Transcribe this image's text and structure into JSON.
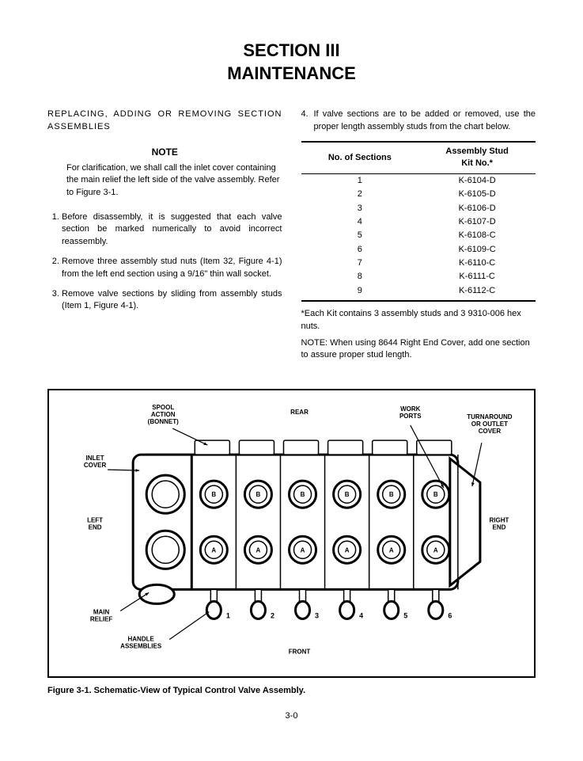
{
  "header": {
    "section_label": "SECTION III",
    "title": "MAINTENANCE"
  },
  "left_col": {
    "heading": "REPLACING, ADDING OR REMOVING SECTION ASSEMBLIES",
    "note_label": "NOTE",
    "note_body": "For clarification, we shall call the inlet cover containing the main relief the left side of the valve assembly. Refer to Figure 3-1.",
    "steps": [
      "Before disassembly, it is suggested that each valve section be marked numerically to avoid incorrect reassembly.",
      "Remove three assembly stud nuts (Item 32, Figure 4-1) from the left end section using a 9/16\" thin wall socket.",
      "Remove valve sections by sliding from assembly studs (Item 1, Figure 4-1)."
    ]
  },
  "right_col": {
    "step4": "If valve sections are to be added or removed, use the proper length assembly studs from the chart below.",
    "table": {
      "col1": "No. of Sections",
      "col2_line1": "Assembly Stud",
      "col2_line2": "Kit No.*",
      "rows": [
        {
          "n": "1",
          "kit": "K-6104-D"
        },
        {
          "n": "2",
          "kit": "K-6105-D"
        },
        {
          "n": "3",
          "kit": "K-6106-D"
        },
        {
          "n": "4",
          "kit": "K-6107-D"
        },
        {
          "n": "5",
          "kit": "K-6108-C"
        },
        {
          "n": "6",
          "kit": "K-6109-C"
        },
        {
          "n": "7",
          "kit": "K-6110-C"
        },
        {
          "n": "8",
          "kit": "K-6111-C"
        },
        {
          "n": "9",
          "kit": "K-6112-C"
        }
      ]
    },
    "footnote": "*Each Kit contains 3 assembly studs and 3 9310-006 hex nuts.",
    "note2": "NOTE: When using 8644 Right End Cover, add one section to assure proper stud length."
  },
  "figure": {
    "caption": "Figure 3-1. Schematic-View of Typical Control Valve Assembly.",
    "labels": {
      "spool": "SPOOL\nACTION\n(BONNET)",
      "rear": "REAR",
      "work_ports": "WORK\nPORTS",
      "turnaround": "TURNAROUND\nOR OUTLET\nCOVER",
      "inlet": "INLET\nCOVER",
      "left_end": "LEFT\nEND",
      "right_end": "RIGHT\nEND",
      "main_relief": "MAIN\nRELIEF",
      "handle": "HANDLE\nASSEMBLIES",
      "front": "FRONT"
    },
    "port_letters": {
      "top": "B",
      "bottom": "A"
    },
    "section_numbers": [
      "1",
      "2",
      "3",
      "4",
      "5",
      "6"
    ],
    "style": {
      "stroke": "#000000",
      "stroke_width_heavy": 3,
      "stroke_width_light": 1.5,
      "stroke_width_leader": 1.2,
      "fill": "#ffffff",
      "label_fontsize": 8,
      "label_fontweight": "bold",
      "number_fontsize": 9
    }
  },
  "page_number": "3-0"
}
